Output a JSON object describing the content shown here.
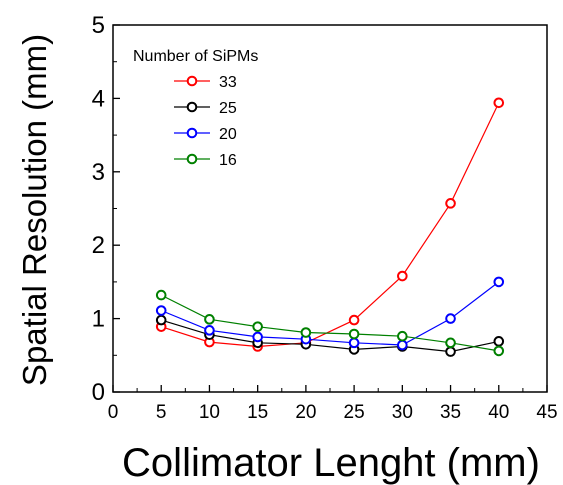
{
  "chart_data": {
    "type": "line",
    "title": "",
    "xlabel": "Collimator Lenght (mm)",
    "ylabel": "Spatial Resolution (mm)",
    "xlim": [
      0,
      45
    ],
    "ylim": [
      0,
      5
    ],
    "xticks": [
      0,
      5,
      10,
      15,
      20,
      25,
      30,
      35,
      40,
      45
    ],
    "yticks": [
      0,
      1,
      2,
      3,
      4,
      5
    ],
    "grid": false,
    "legend_title": "Number of SiPMs",
    "legend_position": "top-left",
    "x": [
      5,
      10,
      15,
      20,
      25,
      30,
      35,
      40
    ],
    "series": [
      {
        "name": "33",
        "color": "#ff0000",
        "values": [
          0.89,
          0.68,
          0.62,
          0.67,
          0.98,
          1.58,
          2.57,
          3.94
        ]
      },
      {
        "name": "25",
        "color": "#000000",
        "values": [
          0.98,
          0.78,
          0.67,
          0.65,
          0.58,
          0.62,
          0.55,
          0.69
        ]
      },
      {
        "name": "20",
        "color": "#0000ff",
        "values": [
          1.11,
          0.84,
          0.75,
          0.72,
          0.67,
          0.64,
          1.0,
          1.5
        ]
      },
      {
        "name": "16",
        "color": "#008000",
        "values": [
          1.32,
          0.99,
          0.89,
          0.81,
          0.79,
          0.76,
          0.67,
          0.56
        ]
      }
    ]
  }
}
